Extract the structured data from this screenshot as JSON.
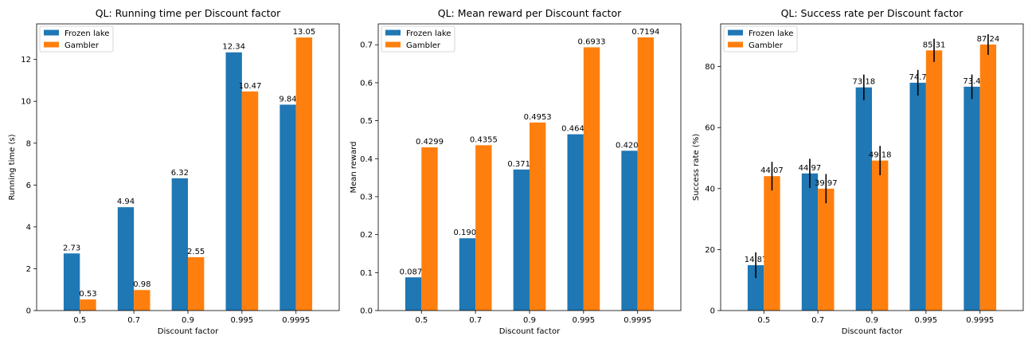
{
  "colors": {
    "frozen_lake": "#1f77b4",
    "gambler": "#ff7f0e"
  },
  "chart_data": [
    {
      "type": "bar",
      "title": "QL: Running time per Discount factor",
      "xlabel": "Discount factor",
      "ylabel": "Running time (s)",
      "categories": [
        "0.5",
        "0.7",
        "0.9",
        "0.995",
        "0.9995"
      ],
      "ylim": [
        0,
        13.7
      ],
      "yticks": [
        0,
        2,
        4,
        6,
        8,
        10,
        12
      ],
      "yticklabels": [
        "0",
        "2",
        "4",
        "6",
        "8",
        "10",
        "12"
      ],
      "legend": "top-left",
      "grid": false,
      "series": [
        {
          "name": "Frozen lake",
          "values": [
            2.73,
            4.94,
            6.32,
            12.34,
            9.84
          ],
          "labels": [
            "2.73",
            "4.94",
            "6.32",
            "12.34",
            "9.84"
          ]
        },
        {
          "name": "Gambler",
          "values": [
            0.53,
            0.98,
            2.55,
            10.47,
            13.05
          ],
          "labels": [
            "0.53",
            "0.98",
            "2.55",
            "10.47",
            "13.05"
          ]
        }
      ]
    },
    {
      "type": "bar",
      "title": "QL: Mean reward per Discount factor",
      "xlabel": "Discount factor",
      "ylabel": "Mean reward",
      "categories": [
        "0.5",
        "0.7",
        "0.9",
        "0.995",
        "0.9995"
      ],
      "ylim": [
        0,
        0.755
      ],
      "yticks": [
        0,
        0.1,
        0.2,
        0.3,
        0.4,
        0.5,
        0.6,
        0.7
      ],
      "yticklabels": [
        "0.0",
        "0.1",
        "0.2",
        "0.3",
        "0.4",
        "0.5",
        "0.6",
        "0.7"
      ],
      "legend": "top-left",
      "grid": false,
      "series": [
        {
          "name": "Frozen lake",
          "values": [
            0.0875,
            0.1904,
            0.3715,
            0.4643,
            0.4209
          ],
          "labels": [
            "0.0875",
            "0.1904",
            "0.3715",
            "0.4643",
            "0.4209"
          ]
        },
        {
          "name": "Gambler",
          "values": [
            0.4299,
            0.4355,
            0.4953,
            0.6933,
            0.7194
          ],
          "labels": [
            "0.4299",
            "0.4355",
            "0.4953",
            "0.6933",
            "0.7194"
          ]
        }
      ]
    },
    {
      "type": "bar",
      "title": "QL: Success rate per Discount factor",
      "xlabel": "Discount factor",
      "ylabel": "Success rate (%)",
      "categories": [
        "0.5",
        "0.7",
        "0.9",
        "0.995",
        "0.9995"
      ],
      "ylim": [
        0,
        94
      ],
      "yticks": [
        0,
        20,
        40,
        60,
        80
      ],
      "yticklabels": [
        "0",
        "20",
        "40",
        "60",
        "80"
      ],
      "legend": "top-left",
      "grid": false,
      "series": [
        {
          "name": "Frozen lake",
          "values": [
            14.87,
            44.97,
            73.18,
            74.7,
            73.4
          ],
          "labels": [
            "14.87",
            "44.97",
            "73.18",
            "74.7",
            "73.4"
          ],
          "errors": [
            4.2,
            4.8,
            4.2,
            4.2,
            4.0
          ]
        },
        {
          "name": "Gambler",
          "values": [
            44.07,
            39.97,
            49.18,
            85.31,
            87.24
          ],
          "labels": [
            "44.07",
            "39.97",
            "49.18",
            "85.31",
            "87.24"
          ],
          "errors": [
            4.7,
            4.8,
            4.8,
            3.8,
            3.4
          ]
        }
      ]
    }
  ]
}
